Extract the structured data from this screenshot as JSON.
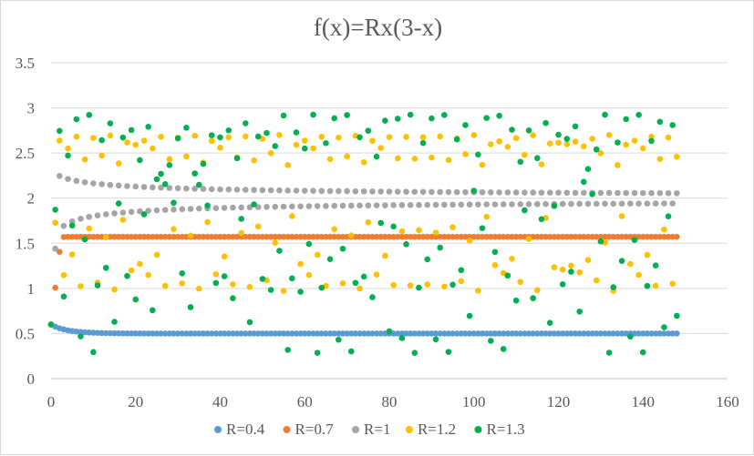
{
  "chart_data": {
    "type": "scatter",
    "title": "f(x)=Rx(3-x)",
    "xlabel": "",
    "ylabel": "",
    "xlim": [
      0,
      160
    ],
    "ylim": [
      0,
      3.5
    ],
    "x_ticks": [
      0,
      20,
      40,
      60,
      80,
      100,
      120,
      140,
      160
    ],
    "y_ticks": [
      0,
      0.5,
      1,
      1.5,
      2,
      2.5,
      3,
      3.5
    ],
    "x_tick_labels": [
      "0",
      "20",
      "40",
      "60",
      "80",
      "100",
      "120",
      "140",
      "160"
    ],
    "y_tick_labels": [
      "0",
      "0.5",
      "1",
      "1.5",
      "2",
      "2.5",
      "3",
      "3.5"
    ],
    "grid": "horizontal",
    "legend_position": "bottom",
    "x": {
      "start": 0,
      "end": 148,
      "step": 1
    },
    "x0": 0.6,
    "series": [
      {
        "name": "R=0.4",
        "R": 0.4,
        "color": "#5b9bd5"
      },
      {
        "name": "R=0.7",
        "R": 0.7,
        "color": "#ed7d31"
      },
      {
        "name": "R=1",
        "R": 1.0,
        "color": "#a5a5a5"
      },
      {
        "name": "R=1.2",
        "R": 1.2,
        "color": "#ffc000"
      },
      {
        "name": "R=1.3",
        "R": 1.3,
        "color": "#00b050"
      }
    ]
  }
}
